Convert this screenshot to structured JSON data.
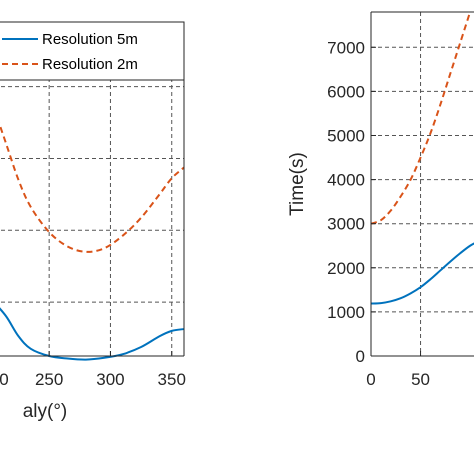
{
  "chart_data": [
    {
      "type": "line",
      "xlabel": "aly(°)",
      "ylabel": "",
      "xlim": [
        205,
        360
      ],
      "ylim": [
        850,
        1780
      ],
      "x_ticks": [
        250,
        300,
        350
      ],
      "x_tick_labels": [
        "250",
        "300",
        "350"
      ],
      "partial_left_tick_label": "0",
      "grid": true,
      "legend_position": "top-right",
      "series": [
        {
          "name": "Resolution 5m",
          "color": "#0072BD",
          "style": "solid",
          "x": [
            205,
            215,
            225,
            235,
            250,
            265,
            280,
            295,
            310,
            325,
            340,
            350,
            360
          ],
          "y": [
            1000,
            960,
            905,
            870,
            850,
            843,
            840,
            845,
            855,
            875,
            905,
            920,
            925
          ]
        },
        {
          "name": "Resolution 2m",
          "color": "#D95319",
          "style": "dashed",
          "x": [
            205,
            215,
            225,
            235,
            250,
            265,
            280,
            295,
            310,
            325,
            340,
            350,
            360
          ],
          "y": [
            1540,
            1440,
            1340,
            1265,
            1195,
            1155,
            1140,
            1150,
            1185,
            1235,
            1300,
            1345,
            1375
          ]
        }
      ]
    },
    {
      "type": "line",
      "xlabel": "",
      "ylabel": "Time(s)",
      "xlim": [
        0,
        110
      ],
      "ylim": [
        0,
        7800
      ],
      "x_ticks": [
        0,
        50
      ],
      "x_tick_labels": [
        "0",
        "50"
      ],
      "y_ticks": [
        0,
        1000,
        2000,
        3000,
        4000,
        5000,
        6000,
        7000
      ],
      "y_tick_labels": [
        "0",
        "1000",
        "2000",
        "3000",
        "4000",
        "5000",
        "6000",
        "7000"
      ],
      "grid": true,
      "series": [
        {
          "color": "#0072BD",
          "style": "solid",
          "x": [
            0,
            10,
            20,
            30,
            40,
            50,
            60,
            70,
            80,
            90,
            100,
            110
          ],
          "y": [
            1190,
            1200,
            1240,
            1310,
            1420,
            1560,
            1740,
            1940,
            2140,
            2330,
            2500,
            2620
          ]
        },
        {
          "color": "#D95319",
          "style": "dashed",
          "x": [
            0,
            10,
            20,
            30,
            40,
            50,
            60,
            70,
            80,
            90,
            100
          ],
          "y": [
            3000,
            3080,
            3300,
            3620,
            4000,
            4500,
            5050,
            5700,
            6400,
            7100,
            7800
          ]
        }
      ]
    }
  ]
}
